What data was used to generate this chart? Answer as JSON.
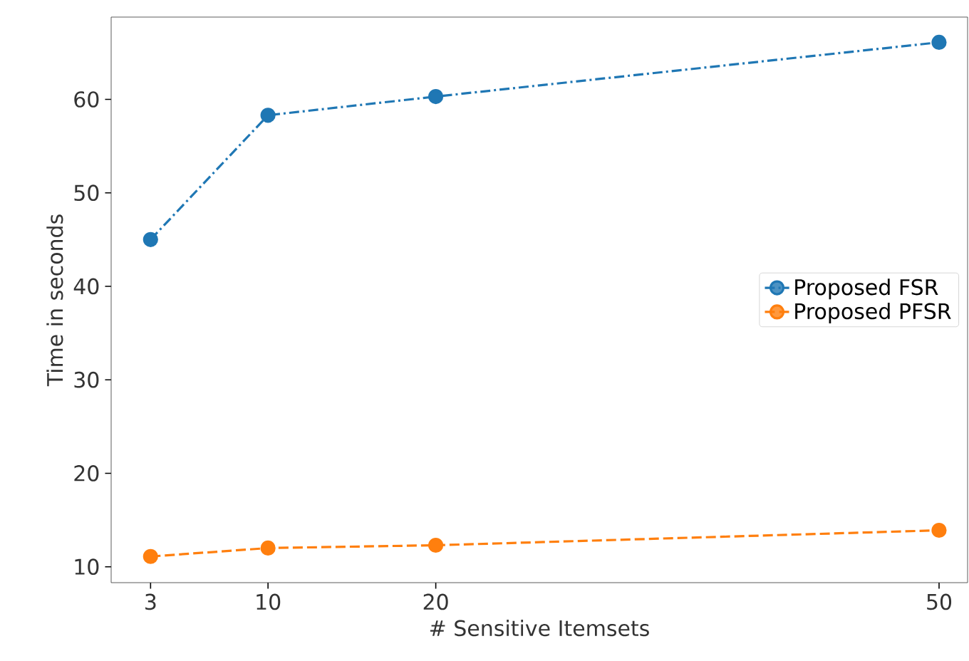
{
  "chart_data": {
    "type": "line",
    "xlabel": "# Sensitive Itemsets",
    "ylabel": "Time in seconds",
    "x": [
      3,
      10,
      20,
      50
    ],
    "series": [
      {
        "name": "Proposed FSR",
        "color": "#1f77b4",
        "values": [
          45,
          58.3,
          60.3,
          66.1
        ],
        "line_style": "dashdot"
      },
      {
        "name": "Proposed PFSR",
        "color": "#ff7f0e",
        "values": [
          11.1,
          12.0,
          12.3,
          13.9
        ],
        "line_style": "dashed"
      }
    ],
    "xlim": [
      0.65,
      51.7
    ],
    "ylim": [
      8.3,
      68.8
    ],
    "xticks": [
      3,
      10,
      20,
      50
    ],
    "yticks": [
      10,
      20,
      30,
      40,
      50,
      60
    ],
    "marker": "circle",
    "legend": "right",
    "grid": false
  }
}
